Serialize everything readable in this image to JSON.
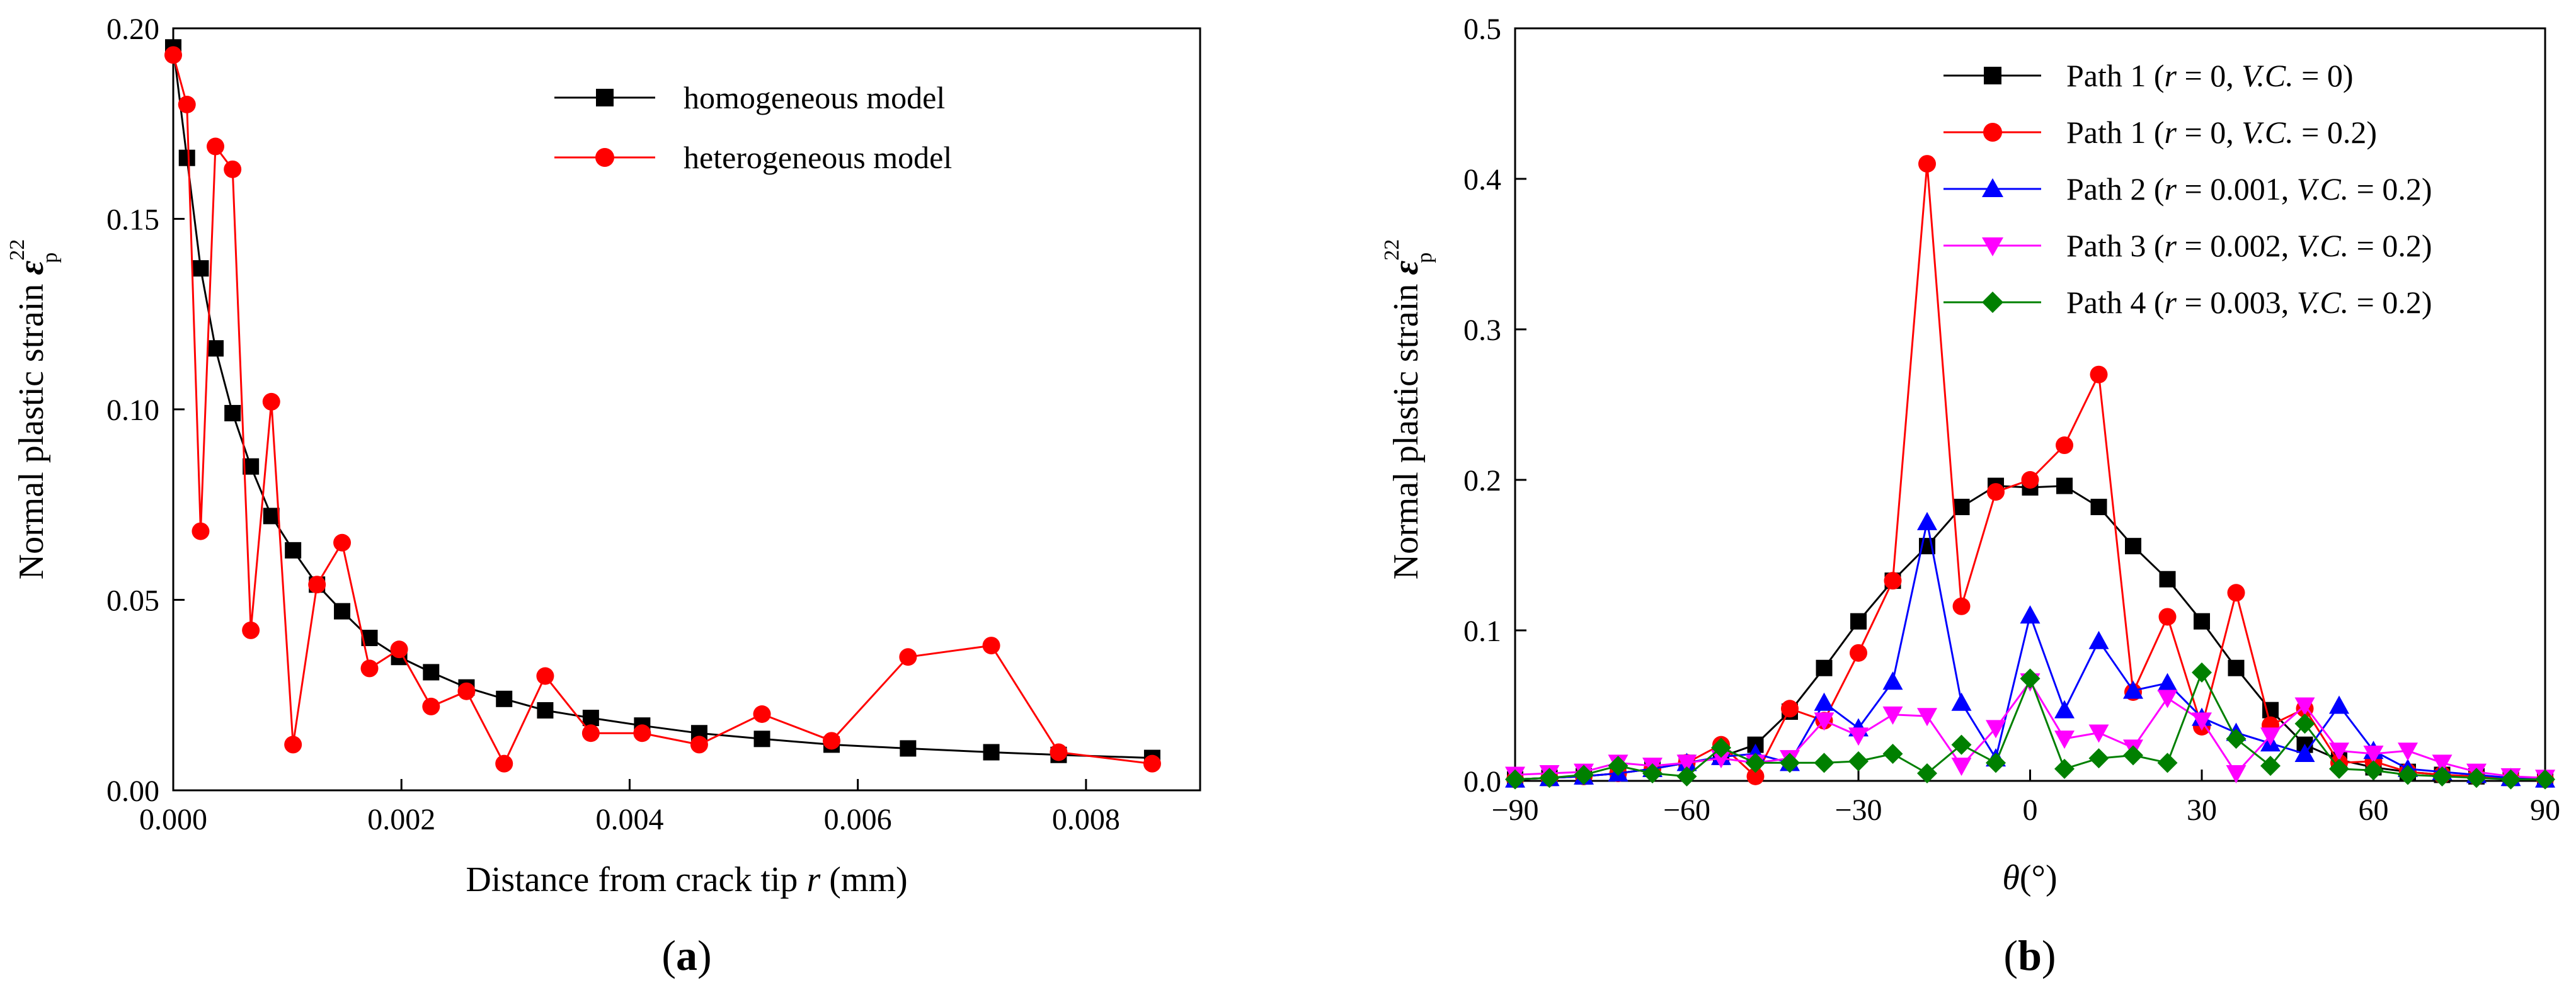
{
  "figure": {
    "panel_a_label_open": "(",
    "panel_a_label_letter": "a",
    "panel_a_label_close": ")",
    "panel_b_label_open": "(",
    "panel_b_label_letter": "b",
    "panel_b_label_close": ")"
  },
  "chart_data": [
    {
      "type": "line",
      "panel": "a",
      "xlabel_prefix": "Distance from crack tip ",
      "xlabel_var": "r",
      "xlabel_suffix": " (mm)",
      "ylabel_prefix": "Normal plastic strain ",
      "ylabel_symbol": "ε",
      "ylabel_sup": "22",
      "ylabel_sub": "p",
      "xlim": [
        0,
        0.009
      ],
      "ylim": [
        0,
        0.2
      ],
      "xticks": [
        0,
        0.002,
        0.004,
        0.006,
        0.008
      ],
      "xtick_labels": [
        "0.000",
        "0.002",
        "0.004",
        "0.006",
        "0.008"
      ],
      "yticks": [
        0,
        0.05,
        0.1,
        0.15,
        0.2
      ],
      "ytick_labels": [
        "0.00",
        "0.05",
        "0.10",
        "0.15",
        "0.20"
      ],
      "legend_position": "top-right",
      "series": [
        {
          "name": "homogeneous model",
          "color": "#000000",
          "marker": "square",
          "x": [
            0.0,
            0.00012,
            0.00024,
            0.00037,
            0.00052,
            0.00068,
            0.00086,
            0.00105,
            0.00126,
            0.00148,
            0.00172,
            0.00198,
            0.00226,
            0.00257,
            0.0029,
            0.00326,
            0.00366,
            0.00411,
            0.00461,
            0.00516,
            0.00577,
            0.00644,
            0.00717,
            0.00776,
            0.00858
          ],
          "y": [
            0.195,
            0.166,
            0.137,
            0.116,
            0.099,
            0.085,
            0.072,
            0.063,
            0.054,
            0.047,
            0.04,
            0.035,
            0.031,
            0.027,
            0.024,
            0.021,
            0.019,
            0.017,
            0.015,
            0.0135,
            0.012,
            0.011,
            0.01,
            0.0093,
            0.0085
          ]
        },
        {
          "name": "heterogeneous model",
          "color": "#ff0000",
          "marker": "circle",
          "x": [
            0.0,
            0.00012,
            0.00024,
            0.00037,
            0.00052,
            0.00068,
            0.00086,
            0.00105,
            0.00126,
            0.00148,
            0.00172,
            0.00198,
            0.00226,
            0.00257,
            0.0029,
            0.00326,
            0.00366,
            0.00411,
            0.00461,
            0.00516,
            0.00577,
            0.00644,
            0.00717,
            0.00776,
            0.00858
          ],
          "y": [
            0.193,
            0.18,
            0.068,
            0.169,
            0.163,
            0.042,
            0.102,
            0.012,
            0.054,
            0.065,
            0.032,
            0.037,
            0.022,
            0.026,
            0.007,
            0.03,
            0.015,
            0.015,
            0.012,
            0.02,
            0.013,
            0.035,
            0.038,
            0.01,
            0.007
          ]
        }
      ]
    },
    {
      "type": "line",
      "panel": "b",
      "xlabel_symbol": "θ",
      "xlabel_suffix": "(°)",
      "ylabel_prefix": "Normal plastic strain ",
      "ylabel_symbol": "ε",
      "ylabel_sup": "22",
      "ylabel_sub": "p",
      "xlim": [
        -90,
        90
      ],
      "ylim": [
        0,
        0.5
      ],
      "xticks": [
        -90,
        -60,
        -30,
        0,
        30,
        60,
        90
      ],
      "xtick_labels": [
        "−90",
        "−60",
        "−30",
        "0",
        "30",
        "60",
        "90"
      ],
      "yticks": [
        0,
        0.1,
        0.2,
        0.3,
        0.4,
        0.5
      ],
      "ytick_labels": [
        "0.0",
        "0.1",
        "0.2",
        "0.3",
        "0.4",
        "0.5"
      ],
      "legend_position": "top-right",
      "series": [
        {
          "name": "Path 1 (r = 0, V.C. = 0)",
          "legend_path": "Path 1 (",
          "legend_r": "r",
          "legend_r_value": " = 0, ",
          "legend_vc": "V.C.",
          "legend_vc_value": " = 0)",
          "color": "#000000",
          "marker": "square",
          "x": [
            -90,
            -84,
            -78,
            -72,
            -66,
            -60,
            -54,
            -48,
            -42,
            -36,
            -30,
            -24,
            -18,
            -12,
            -6,
            0,
            6,
            12,
            18,
            24,
            30,
            36,
            42,
            48,
            54,
            60,
            66,
            72,
            78,
            84,
            90
          ],
          "y": [
            0.001,
            0.002,
            0.003,
            0.005,
            0.008,
            0.012,
            0.016,
            0.024,
            0.046,
            0.075,
            0.106,
            0.133,
            0.156,
            0.182,
            0.196,
            0.195,
            0.196,
            0.182,
            0.156,
            0.134,
            0.106,
            0.075,
            0.047,
            0.024,
            0.014,
            0.009,
            0.006,
            0.004,
            0.003,
            0.002,
            0.001
          ]
        },
        {
          "name": "Path 1 (r = 0, V.C. = 0.2)",
          "legend_path": "Path 1 (",
          "legend_r": "r",
          "legend_r_value": " = 0, ",
          "legend_vc": "V.C.",
          "legend_vc_value": " = 0.2)",
          "color": "#ff0000",
          "marker": "circle",
          "x": [
            -90,
            -84,
            -78,
            -72,
            -66,
            -60,
            -54,
            -48,
            -42,
            -36,
            -30,
            -24,
            -18,
            -12,
            -6,
            0,
            6,
            12,
            18,
            24,
            30,
            36,
            42,
            48,
            54,
            60,
            66,
            72,
            78,
            84,
            90
          ],
          "y": [
            0.001,
            0.002,
            0.003,
            0.005,
            0.008,
            0.012,
            0.024,
            0.003,
            0.048,
            0.04,
            0.085,
            0.133,
            0.41,
            0.116,
            0.192,
            0.2,
            0.223,
            0.27,
            0.059,
            0.109,
            0.036,
            0.125,
            0.037,
            0.048,
            0.012,
            0.013,
            0.006,
            0.004,
            0.003,
            0.002,
            0.001
          ]
        },
        {
          "name": "Path 2 (r = 0.001, V.C. = 0.2)",
          "legend_path": "Path 2 (",
          "legend_r": "r",
          "legend_r_value": " = 0.001, ",
          "legend_vc": "V.C.",
          "legend_vc_value": " = 0.2)",
          "color": "#0000ff",
          "marker": "triangle-up",
          "x": [
            -90,
            -84,
            -78,
            -72,
            -66,
            -60,
            -54,
            -48,
            -42,
            -36,
            -30,
            -24,
            -18,
            -12,
            -6,
            0,
            6,
            12,
            18,
            24,
            30,
            36,
            42,
            48,
            54,
            60,
            66,
            72,
            78,
            84,
            90
          ],
          "y": [
            0.001,
            0.002,
            0.003,
            0.005,
            0.008,
            0.012,
            0.016,
            0.018,
            0.012,
            0.052,
            0.035,
            0.066,
            0.172,
            0.052,
            0.015,
            0.11,
            0.047,
            0.093,
            0.06,
            0.065,
            0.042,
            0.032,
            0.025,
            0.018,
            0.05,
            0.02,
            0.008,
            0.006,
            0.004,
            0.002,
            0.001
          ]
        },
        {
          "name": "Path 3 (r = 0.002, V.C. = 0.2)",
          "legend_path": "Path 3 (",
          "legend_r": "r",
          "legend_r_value": " = 0.002, ",
          "legend_vc": "V.C.",
          "legend_vc_value": " = 0.2)",
          "color": "#ff00ff",
          "marker": "triangle-down",
          "x": [
            -90,
            -84,
            -78,
            -72,
            -66,
            -60,
            -54,
            -48,
            -42,
            -36,
            -30,
            -24,
            -18,
            -12,
            -6,
            0,
            6,
            12,
            18,
            24,
            30,
            36,
            42,
            48,
            54,
            60,
            66,
            72,
            78,
            84,
            90
          ],
          "y": [
            0.004,
            0.005,
            0.006,
            0.012,
            0.01,
            0.012,
            0.015,
            0.012,
            0.015,
            0.04,
            0.03,
            0.044,
            0.043,
            0.01,
            0.035,
            0.066,
            0.028,
            0.032,
            0.022,
            0.055,
            0.04,
            0.005,
            0.03,
            0.05,
            0.02,
            0.018,
            0.02,
            0.012,
            0.006,
            0.003,
            0.002
          ]
        },
        {
          "name": "Path 4 (r = 0.003, V.C. = 0.2)",
          "legend_path": "Path 4 (",
          "legend_r": "r",
          "legend_r_value": " = 0.003, ",
          "legend_vc": "V.C.",
          "legend_vc_value": " = 0.2)",
          "color": "#008000",
          "marker": "diamond",
          "x": [
            -90,
            -84,
            -78,
            -72,
            -66,
            -60,
            -54,
            -48,
            -42,
            -36,
            -30,
            -24,
            -18,
            -12,
            -6,
            0,
            6,
            12,
            18,
            24,
            30,
            36,
            42,
            48,
            54,
            60,
            66,
            72,
            78,
            84,
            90
          ],
          "y": [
            0.001,
            0.002,
            0.004,
            0.01,
            0.005,
            0.003,
            0.022,
            0.012,
            0.012,
            0.012,
            0.013,
            0.018,
            0.005,
            0.024,
            0.012,
            0.068,
            0.008,
            0.015,
            0.017,
            0.012,
            0.072,
            0.028,
            0.01,
            0.038,
            0.008,
            0.007,
            0.004,
            0.003,
            0.002,
            0.001,
            0.001
          ]
        }
      ]
    }
  ]
}
